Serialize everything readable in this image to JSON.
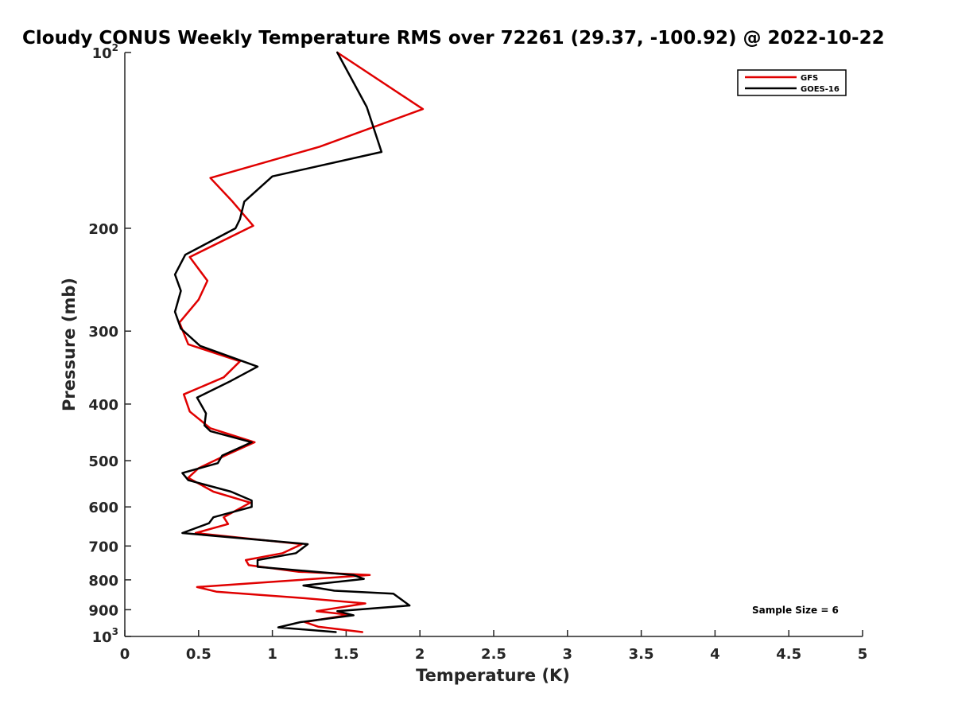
{
  "chart_data": {
    "type": "line",
    "title": "Cloudy CONUS Weekly Temperature RMS over 72261 (29.37, -100.92) @ 2022-10-22",
    "xlabel": "Temperature (K)",
    "ylabel": "Pressure (mb)",
    "xlim": [
      0,
      5
    ],
    "ylim": [
      100,
      1000
    ],
    "y_scale": "log",
    "y_reversed": true,
    "grid": false,
    "legend_position": "top-right",
    "x_ticks": [
      0,
      0.5,
      1,
      1.5,
      2,
      2.5,
      3,
      3.5,
      4,
      4.5,
      5
    ],
    "x_tick_labels": [
      "0",
      "0.5",
      "1",
      "1.5",
      "2",
      "2.5",
      "3",
      "3.5",
      "4",
      "4.5",
      "5"
    ],
    "y_ticks": [
      {
        "value": 100,
        "base": "10",
        "exp": "2"
      },
      {
        "value": 200,
        "label": "200"
      },
      {
        "value": 300,
        "label": "300"
      },
      {
        "value": 400,
        "label": "400"
      },
      {
        "value": 500,
        "label": "500"
      },
      {
        "value": 600,
        "label": "600"
      },
      {
        "value": 700,
        "label": "700"
      },
      {
        "value": 800,
        "label": "800"
      },
      {
        "value": 900,
        "label": "900"
      },
      {
        "value": 1000,
        "base": "10",
        "exp": "3"
      }
    ],
    "series": [
      {
        "name": "GFS",
        "color": "#e00000",
        "points": [
          [
            1.44,
            100
          ],
          [
            2.02,
            125
          ],
          [
            1.32,
            145
          ],
          [
            0.58,
            164
          ],
          [
            0.73,
            180
          ],
          [
            0.87,
            198
          ],
          [
            0.44,
            224
          ],
          [
            0.56,
            246
          ],
          [
            0.5,
            265
          ],
          [
            0.37,
            290
          ],
          [
            0.43,
            316
          ],
          [
            0.78,
            338
          ],
          [
            0.67,
            360
          ],
          [
            0.4,
            385
          ],
          [
            0.44,
            412
          ],
          [
            0.58,
            440
          ],
          [
            0.88,
            465
          ],
          [
            0.68,
            490
          ],
          [
            0.5,
            515
          ],
          [
            0.43,
            535
          ],
          [
            0.6,
            565
          ],
          [
            0.85,
            590
          ],
          [
            0.67,
            625
          ],
          [
            0.7,
            642
          ],
          [
            0.48,
            665
          ],
          [
            1.2,
            695
          ],
          [
            1.07,
            720
          ],
          [
            0.82,
            740
          ],
          [
            0.84,
            755
          ],
          [
            1.18,
            775
          ],
          [
            1.66,
            785
          ],
          [
            0.49,
            823
          ],
          [
            0.62,
            838
          ],
          [
            1.17,
            858
          ],
          [
            1.63,
            878
          ],
          [
            1.3,
            905
          ],
          [
            1.52,
            918
          ],
          [
            1.22,
            945
          ],
          [
            1.31,
            962
          ],
          [
            1.61,
            983
          ]
        ]
      },
      {
        "name": "GOES-16",
        "color": "#000000",
        "points": [
          [
            1.44,
            100
          ],
          [
            1.64,
            124
          ],
          [
            1.74,
            148
          ],
          [
            1.0,
            163
          ],
          [
            0.81,
            180
          ],
          [
            0.78,
            193
          ],
          [
            0.75,
            200
          ],
          [
            0.41,
            222
          ],
          [
            0.34,
            240
          ],
          [
            0.38,
            256
          ],
          [
            0.34,
            278
          ],
          [
            0.38,
            297
          ],
          [
            0.51,
            318
          ],
          [
            0.9,
            345
          ],
          [
            0.72,
            365
          ],
          [
            0.49,
            390
          ],
          [
            0.55,
            415
          ],
          [
            0.54,
            435
          ],
          [
            0.58,
            445
          ],
          [
            0.86,
            465
          ],
          [
            0.66,
            490
          ],
          [
            0.63,
            505
          ],
          [
            0.39,
            525
          ],
          [
            0.43,
            540
          ],
          [
            0.72,
            565
          ],
          [
            0.86,
            585
          ],
          [
            0.86,
            600
          ],
          [
            0.6,
            625
          ],
          [
            0.57,
            640
          ],
          [
            0.39,
            665
          ],
          [
            1.24,
            695
          ],
          [
            1.16,
            720
          ],
          [
            0.9,
            740
          ],
          [
            0.9,
            760
          ],
          [
            1.55,
            785
          ],
          [
            1.62,
            797
          ],
          [
            1.21,
            818
          ],
          [
            1.42,
            835
          ],
          [
            1.82,
            845
          ],
          [
            1.93,
            885
          ],
          [
            1.44,
            905
          ],
          [
            1.55,
            920
          ],
          [
            1.19,
            945
          ],
          [
            1.04,
            965
          ],
          [
            1.43,
            983
          ]
        ]
      }
    ],
    "annotation": "Sample Size = 6"
  }
}
